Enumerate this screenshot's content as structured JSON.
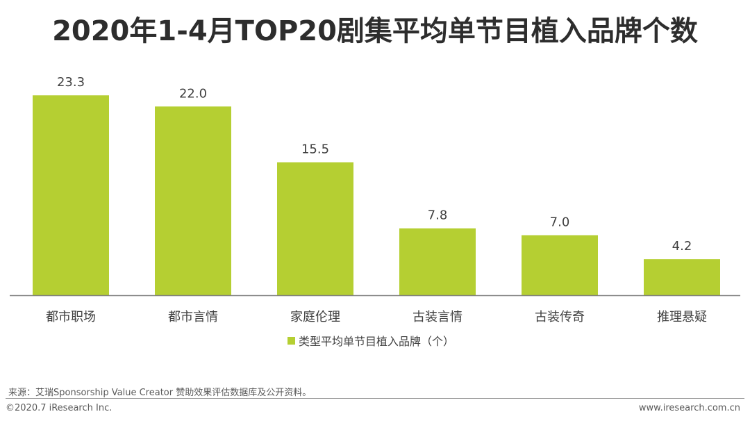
{
  "title": "2020年1-4月TOP20剧集平均单节目植入品牌个数",
  "chart_data": {
    "type": "bar",
    "categories": [
      "都市职场",
      "都市言情",
      "家庭伦理",
      "古装言情",
      "古装传奇",
      "推理悬疑"
    ],
    "series": [
      {
        "name": "类型平均单节目植入品牌（个）",
        "values": [
          23.3,
          22.0,
          15.5,
          7.8,
          7.0,
          4.2
        ],
        "data_labels": [
          "23.3",
          "22.0",
          "15.5",
          "7.8",
          "7.0",
          "4.2"
        ]
      }
    ],
    "ylim": [
      0,
      25
    ],
    "grid": false,
    "legend_position": "bottom-center",
    "bar_color": "#b5cf32",
    "axis_color": "#7f7f7f"
  },
  "footer": {
    "source": "来源：艾瑞Sponsorship Value Creator 赞助效果评估数据库及公开资料。",
    "copyright": "©2020.7 iResearch Inc.",
    "website": "www.iresearch.com.cn"
  }
}
